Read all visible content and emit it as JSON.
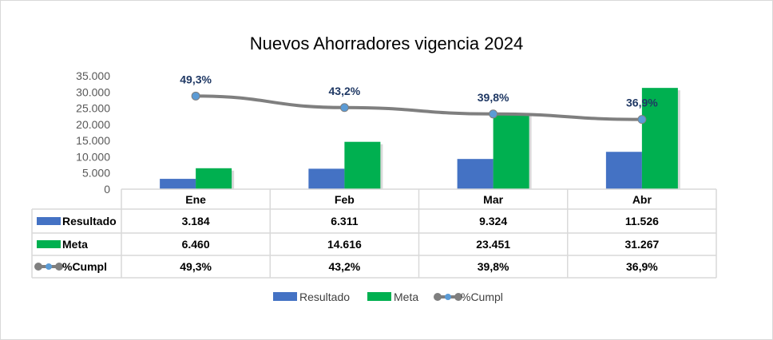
{
  "chart_data": {
    "type": "bar",
    "title": "Nuevos Ahorradores vigencia 2024",
    "categories": [
      "Ene",
      "Feb",
      "Mar",
      "Abr"
    ],
    "ylim": [
      0,
      35000
    ],
    "y_ticks": [
      "0",
      "5.000",
      "10.000",
      "15.000",
      "20.000",
      "25.000",
      "30.000",
      "35.000"
    ],
    "secondary_axis": {
      "hidden": true,
      "ylim": [
        0,
        0.6
      ]
    },
    "grid": false,
    "legend": "bottom",
    "data_table": true,
    "series": [
      {
        "name": "Resultado",
        "type": "bar",
        "color": "#4472c4",
        "values": [
          3184,
          6311,
          9324,
          11526
        ],
        "labels": [
          "3.184",
          "6.311",
          "9.324",
          "11.526"
        ]
      },
      {
        "name": "Meta",
        "type": "bar",
        "color": "#00b050",
        "values": [
          6460,
          14616,
          23451,
          31267
        ],
        "labels": [
          "6.460",
          "14.616",
          "23.451",
          "31.267"
        ]
      },
      {
        "name": "%Cumpl",
        "type": "line",
        "axis": "secondary",
        "color": "#7f7f7f",
        "marker_color": "#5b9bd5",
        "values": [
          0.493,
          0.432,
          0.398,
          0.369
        ],
        "labels": [
          "49,3%",
          "43,2%",
          "39,8%",
          "36,9%"
        ]
      }
    ]
  }
}
